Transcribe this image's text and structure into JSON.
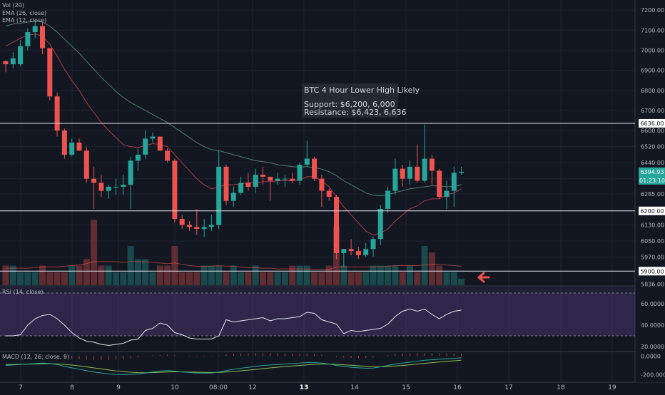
{
  "chart_data": [
    {
      "type": "candlestick",
      "title": "BTC 4 Hour Lower High Likely",
      "annotation_lines": [
        "BTC 4 Hour Lower High Likely",
        "",
        "Support: $6,200, 6,000",
        "Resistance: $6,423, 6,636"
      ],
      "indicators_legend": [
        "Vol (20)",
        "EMA (26, close)",
        "EMA (12, close)"
      ],
      "ylim": [
        5830,
        7250
      ],
      "y_ticks": [
        "7200.00",
        "7100.00",
        "7000.00",
        "6900.00",
        "6800.00",
        "6700.00",
        "6600.00",
        "6520.00",
        "6440.00",
        "6360.00",
        "6285.00",
        "6200.00",
        "6130.00",
        "6050.00",
        "5970.00",
        "5900.00"
      ],
      "bottom_tick_partial": "5836.00",
      "horizontal_lines": [
        {
          "value": 6636.0,
          "label": "6636.00"
        },
        {
          "value": 6200.0,
          "label": "6200.00"
        },
        {
          "value": 5900.0,
          "label": "5900.00"
        }
      ],
      "last_price_label": "6394.93",
      "countdown_label": "01:23:10",
      "x_tick_labels": [
        "7",
        "8",
        "9",
        "10",
        "08:00",
        "12",
        "13",
        "14",
        "15",
        "16",
        "17",
        "18",
        "19"
      ],
      "bold_x_labels": [
        "13"
      ],
      "candles": [
        {
          "o": 6945,
          "h": 6950,
          "l": 6890,
          "c": 6930
        },
        {
          "o": 6930,
          "h": 6990,
          "l": 6910,
          "c": 6960
        },
        {
          "o": 6930,
          "h": 7050,
          "l": 6920,
          "c": 7020
        },
        {
          "o": 7020,
          "h": 7110,
          "l": 7000,
          "c": 7090
        },
        {
          "o": 7090,
          "h": 7150,
          "l": 7060,
          "c": 7120
        },
        {
          "o": 7120,
          "h": 7140,
          "l": 6980,
          "c": 7010
        },
        {
          "o": 7010,
          "h": 7000,
          "l": 6750,
          "c": 6770
        },
        {
          "o": 6770,
          "h": 6790,
          "l": 6570,
          "c": 6600
        },
        {
          "o": 6600,
          "h": 6610,
          "l": 6460,
          "c": 6480
        },
        {
          "o": 6480,
          "h": 6560,
          "l": 6470,
          "c": 6540
        },
        {
          "o": 6540,
          "h": 6560,
          "l": 6500,
          "c": 6500
        },
        {
          "o": 6500,
          "h": 6520,
          "l": 6340,
          "c": 6360
        },
        {
          "o": 6360,
          "h": 6420,
          "l": 6210,
          "c": 6340
        },
        {
          "o": 6340,
          "h": 6380,
          "l": 6270,
          "c": 6300
        },
        {
          "o": 6300,
          "h": 6330,
          "l": 6260,
          "c": 6320
        },
        {
          "o": 6320,
          "h": 6360,
          "l": 6280,
          "c": 6320
        },
        {
          "o": 6320,
          "h": 6380,
          "l": 6280,
          "c": 6330
        },
        {
          "o": 6330,
          "h": 6470,
          "l": 6210,
          "c": 6450
        },
        {
          "o": 6450,
          "h": 6510,
          "l": 6400,
          "c": 6480
        },
        {
          "o": 6480,
          "h": 6600,
          "l": 6460,
          "c": 6560
        },
        {
          "o": 6560,
          "h": 6590,
          "l": 6540,
          "c": 6570
        },
        {
          "o": 6570,
          "h": 6560,
          "l": 6500,
          "c": 6500
        },
        {
          "o": 6500,
          "h": 6510,
          "l": 6440,
          "c": 6450
        },
        {
          "o": 6450,
          "h": 6460,
          "l": 6140,
          "c": 6160
        },
        {
          "o": 6160,
          "h": 6180,
          "l": 6110,
          "c": 6130
        },
        {
          "o": 6130,
          "h": 6150,
          "l": 6100,
          "c": 6120
        },
        {
          "o": 6120,
          "h": 6210,
          "l": 6080,
          "c": 6110
        },
        {
          "o": 6110,
          "h": 6160,
          "l": 6070,
          "c": 6120
        },
        {
          "o": 6120,
          "h": 6180,
          "l": 6100,
          "c": 6130
        },
        {
          "o": 6130,
          "h": 6500,
          "l": 6110,
          "c": 6420
        },
        {
          "o": 6420,
          "h": 6430,
          "l": 6230,
          "c": 6250
        },
        {
          "o": 6250,
          "h": 6320,
          "l": 6220,
          "c": 6290
        },
        {
          "o": 6290,
          "h": 6370,
          "l": 6280,
          "c": 6340
        },
        {
          "o": 6340,
          "h": 6390,
          "l": 6300,
          "c": 6320
        },
        {
          "o": 6320,
          "h": 6410,
          "l": 6290,
          "c": 6380
        },
        {
          "o": 6380,
          "h": 6420,
          "l": 6330,
          "c": 6370
        },
        {
          "o": 6370,
          "h": 6370,
          "l": 6250,
          "c": 6350
        },
        {
          "o": 6350,
          "h": 6390,
          "l": 6330,
          "c": 6360
        },
        {
          "o": 6360,
          "h": 6380,
          "l": 6320,
          "c": 6360
        },
        {
          "o": 6360,
          "h": 6390,
          "l": 6340,
          "c": 6350
        },
        {
          "o": 6350,
          "h": 6440,
          "l": 6330,
          "c": 6430
        },
        {
          "o": 6430,
          "h": 6550,
          "l": 6420,
          "c": 6460
        },
        {
          "o": 6460,
          "h": 6470,
          "l": 6350,
          "c": 6360
        },
        {
          "o": 6360,
          "h": 6380,
          "l": 6220,
          "c": 6300
        },
        {
          "o": 6300,
          "h": 6310,
          "l": 6250,
          "c": 6270
        },
        {
          "o": 6270,
          "h": 6280,
          "l": 5960,
          "c": 5990
        },
        {
          "o": 5990,
          "h": 6010,
          "l": 5920,
          "c": 6010
        },
        {
          "o": 6010,
          "h": 6060,
          "l": 5980,
          "c": 6000
        },
        {
          "o": 6000,
          "h": 6020,
          "l": 5960,
          "c": 5980
        },
        {
          "o": 5980,
          "h": 6040,
          "l": 5970,
          "c": 6010
        },
        {
          "o": 6010,
          "h": 6070,
          "l": 5970,
          "c": 6060
        },
        {
          "o": 6060,
          "h": 6230,
          "l": 6030,
          "c": 6210
        },
        {
          "o": 6210,
          "h": 6320,
          "l": 6190,
          "c": 6300
        },
        {
          "o": 6300,
          "h": 6460,
          "l": 6280,
          "c": 6410
        },
        {
          "o": 6410,
          "h": 6430,
          "l": 6320,
          "c": 6360
        },
        {
          "o": 6360,
          "h": 6450,
          "l": 6330,
          "c": 6420
        },
        {
          "o": 6420,
          "h": 6530,
          "l": 6340,
          "c": 6350
        },
        {
          "o": 6350,
          "h": 6630,
          "l": 6340,
          "c": 6460
        },
        {
          "o": 6460,
          "h": 6480,
          "l": 6330,
          "c": 6400
        },
        {
          "o": 6400,
          "h": 6410,
          "l": 6260,
          "c": 6270
        },
        {
          "o": 6270,
          "h": 6350,
          "l": 6210,
          "c": 6300
        },
        {
          "o": 6300,
          "h": 6420,
          "l": 6220,
          "c": 6390
        },
        {
          "o": 6390,
          "h": 6420,
          "l": 6380,
          "c": 6395
        }
      ],
      "ema26": [
        7120,
        7130,
        7135,
        7140,
        7145,
        7140,
        7120,
        7090,
        7055,
        7020,
        6985,
        6945,
        6905,
        6865,
        6830,
        6795,
        6765,
        6740,
        6720,
        6700,
        6680,
        6660,
        6640,
        6615,
        6590,
        6565,
        6540,
        6520,
        6505,
        6500,
        6490,
        6480,
        6470,
        6460,
        6450,
        6445,
        6440,
        6430,
        6425,
        6420,
        6418,
        6420,
        6415,
        6408,
        6395,
        6375,
        6350,
        6330,
        6310,
        6290,
        6278,
        6275,
        6280,
        6292,
        6300,
        6310,
        6315,
        6320,
        6325,
        6325,
        6320,
        6322,
        6330
      ],
      "ema12": [
        7020,
        7040,
        7060,
        7075,
        7080,
        7070,
        7030,
        6970,
        6905,
        6850,
        6800,
        6740,
        6690,
        6640,
        6600,
        6565,
        6530,
        6520,
        6515,
        6525,
        6535,
        6530,
        6520,
        6480,
        6440,
        6400,
        6360,
        6330,
        6310,
        6320,
        6330,
        6330,
        6335,
        6340,
        6340,
        6345,
        6345,
        6350,
        6350,
        6350,
        6355,
        6370,
        6370,
        6350,
        6320,
        6270,
        6220,
        6180,
        6140,
        6100,
        6080,
        6090,
        6110,
        6150,
        6180,
        6210,
        6225,
        6250,
        6260,
        6260,
        6280,
        6290,
        6310
      ],
      "volume_ylim": [
        0,
        12
      ],
      "volume": [
        3,
        3,
        2,
        2,
        2,
        3,
        2,
        2,
        2,
        3,
        3,
        4,
        10,
        3,
        3,
        2,
        2,
        6,
        4,
        4,
        2,
        3,
        3,
        6,
        2,
        2,
        2,
        3,
        3,
        3,
        2,
        3,
        2,
        2,
        3,
        2,
        2,
        2,
        2,
        3,
        3,
        3,
        2,
        2,
        3,
        9,
        3,
        2,
        2,
        2,
        3,
        3,
        3,
        3,
        2,
        3,
        2,
        6,
        5,
        3,
        2,
        2,
        1
      ],
      "volume_ma": [
        2.6,
        2.6,
        2.6,
        2.6,
        2.7,
        2.8,
        2.8,
        2.8,
        2.9,
        3.0,
        3.1,
        3.3,
        3.6,
        3.6,
        3.6,
        3.6,
        3.5,
        3.6,
        3.6,
        3.6,
        3.5,
        3.4,
        3.3,
        3.4,
        3.2,
        3.0,
        2.9,
        2.9,
        2.9,
        3.0,
        2.9,
        2.9,
        2.8,
        2.7,
        2.7,
        2.6,
        2.6,
        2.5,
        2.5,
        2.5,
        2.5,
        2.5,
        2.4,
        2.4,
        2.4,
        2.8,
        2.8,
        2.8,
        2.8,
        2.8,
        2.8,
        2.8,
        2.9,
        3.0,
        3.0,
        3.0,
        3.0,
        3.1,
        3.2,
        3.2,
        3.1,
        3.0,
        2.9
      ]
    },
    {
      "type": "line",
      "legend_label": "RSI (14, close)",
      "ylim": [
        16,
        76
      ],
      "y_ticks": [
        "60.0000",
        "40.0000",
        "20.0000"
      ],
      "band": [
        30,
        70
      ],
      "values": [
        30,
        30,
        31,
        40,
        46,
        49,
        50,
        46,
        40,
        33,
        28,
        25,
        24,
        22,
        21,
        22,
        23,
        26,
        27,
        35,
        37,
        42,
        40,
        33,
        31,
        28,
        27,
        27,
        27,
        30,
        45,
        43,
        44,
        45,
        46,
        47,
        44,
        46,
        46,
        47,
        48,
        52,
        51,
        45,
        43,
        41,
        32,
        35,
        34,
        35,
        36,
        37,
        41,
        48,
        53,
        55,
        53,
        55,
        50,
        46,
        50,
        53,
        54
      ]
    },
    {
      "type": "line",
      "legend_label": "MACD (12, 26, close, 9)",
      "ylim": [
        -270,
        40
      ],
      "y_ticks": [
        "0.0000",
        "-200.0000"
      ],
      "macd": [
        -100,
        -95,
        -90,
        -85,
        -80,
        -75,
        -80,
        -90,
        -110,
        -125,
        -140,
        -155,
        -170,
        -180,
        -190,
        -195,
        -198,
        -195,
        -190,
        -180,
        -170,
        -160,
        -155,
        -160,
        -170,
        -175,
        -180,
        -182,
        -180,
        -170,
        -155,
        -140,
        -130,
        -120,
        -110,
        -100,
        -95,
        -90,
        -85,
        -80,
        -75,
        -70,
        -70,
        -75,
        -85,
        -100,
        -110,
        -120,
        -125,
        -130,
        -128,
        -115,
        -100,
        -85,
        -75,
        -65,
        -55,
        -45,
        -40,
        -35,
        -30,
        -25,
        -20
      ],
      "signal": [
        -90,
        -90,
        -88,
        -87,
        -85,
        -83,
        -82,
        -84,
        -89,
        -96,
        -105,
        -115,
        -126,
        -137,
        -148,
        -158,
        -166,
        -172,
        -176,
        -177,
        -176,
        -173,
        -170,
        -168,
        -168,
        -170,
        -172,
        -174,
        -175,
        -174,
        -170,
        -164,
        -157,
        -150,
        -142,
        -134,
        -126,
        -119,
        -112,
        -106,
        -100,
        -94,
        -89,
        -86,
        -86,
        -89,
        -93,
        -98,
        -104,
        -109,
        -113,
        -114,
        -111,
        -106,
        -100,
        -93,
        -86,
        -78,
        -71,
        -64,
        -57,
        -51,
        -45
      ],
      "hist": [
        -10,
        -5,
        -2,
        2,
        5,
        8,
        2,
        -6,
        -21,
        -29,
        -35,
        -40,
        -44,
        -43,
        -42,
        -37,
        -32,
        -23,
        -14,
        -3,
        6,
        13,
        15,
        8,
        -2,
        -5,
        -8,
        -8,
        -5,
        4,
        15,
        24,
        27,
        30,
        32,
        34,
        31,
        29,
        27,
        26,
        25,
        24,
        19,
        11,
        1,
        -11,
        -17,
        -22,
        -21,
        -21,
        -15,
        -1,
        11,
        21,
        25,
        28,
        31,
        33,
        31,
        29,
        27,
        26,
        25
      ]
    }
  ]
}
